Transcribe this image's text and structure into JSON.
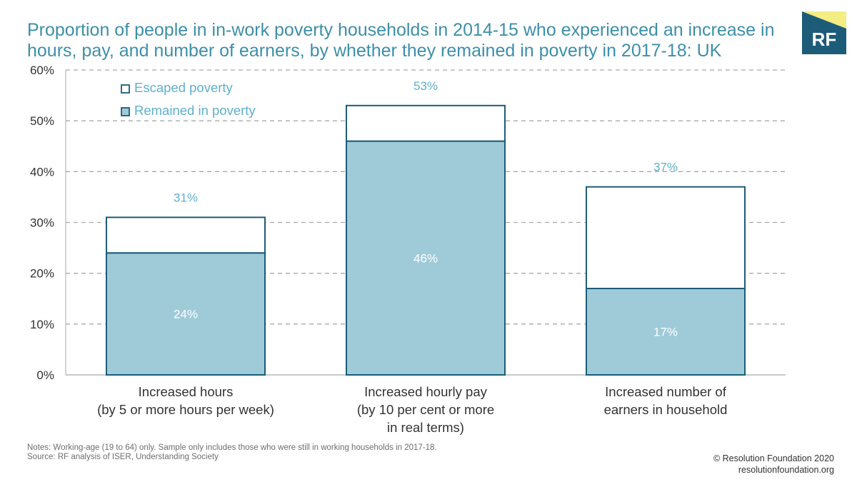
{
  "title": "Proportion of people in in-work poverty households in 2014-15 who experienced an increase in hours, pay, and number of earners, by whether they remained in poverty in 2017-18: UK",
  "logo": {
    "text": "RF",
    "colors": {
      "navy": "#1d5c79",
      "yellow": "#f3ed82"
    }
  },
  "chart_data": {
    "type": "bar",
    "stacked": true,
    "categories": [
      [
        "Increased hours",
        "(by 5 or more hours per week)"
      ],
      [
        "Increased hourly pay",
        "(by 10 per cent or more",
        "in real terms)"
      ],
      [
        "Increased number of",
        "earners in household"
      ]
    ],
    "series": [
      {
        "name": "Remained in poverty",
        "values": [
          24,
          46,
          17
        ],
        "labels": [
          "24%",
          "46%",
          "17%"
        ],
        "color": "#9fcbd9"
      },
      {
        "name": "Escaped poverty",
        "values": [
          7,
          7,
          20
        ],
        "color": "#ffffff"
      }
    ],
    "totals": [
      31,
      53,
      37
    ],
    "total_labels": [
      "31%",
      "53%",
      "37%"
    ],
    "ylim": [
      0,
      60
    ],
    "yticks": [
      0,
      10,
      20,
      30,
      40,
      50,
      60
    ],
    "ytick_labels": [
      "0%",
      "10%",
      "20%",
      "30%",
      "40%",
      "50%",
      "60%"
    ],
    "legend": {
      "position": "top-left",
      "entries": [
        "Escaped poverty",
        "Remained in poverty"
      ]
    },
    "grid": "dashed horizontal",
    "colors": {
      "outline": "#1d5c79",
      "label_text": "#5fb0cc",
      "inner_label_text": "#ffffff",
      "axis_text": "#333333",
      "grid": "#a7a9ac"
    }
  },
  "notes": [
    "Notes: Working-age (19 to 64) only. Sample only includes those who were still in working households in 2017-18.",
    "Source: RF analysis of ISER, Understanding Society"
  ],
  "credit": [
    "© Resolution Foundation 2020",
    "resolutionfoundation.org"
  ]
}
